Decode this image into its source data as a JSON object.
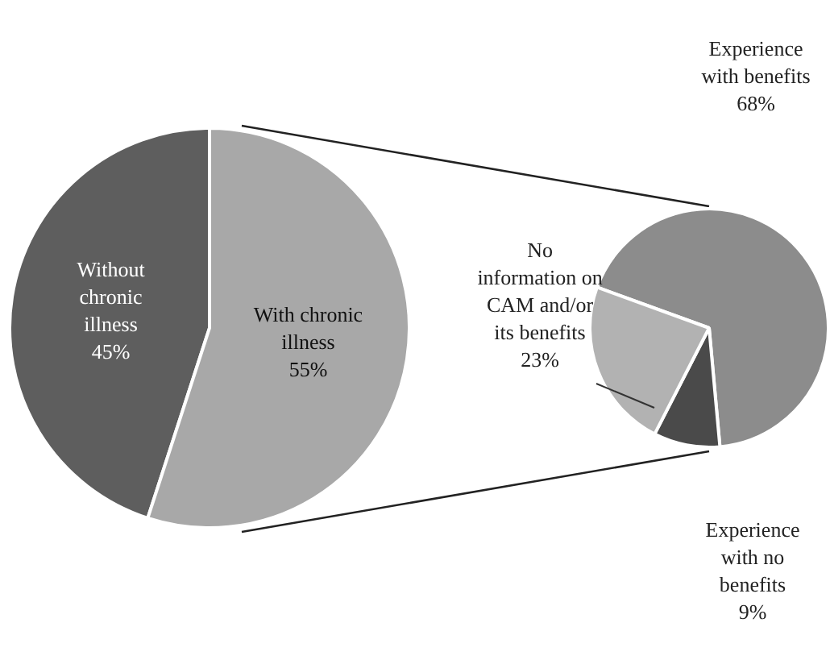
{
  "chart_data": [
    {
      "type": "pie",
      "categories": [
        "Without chronic illness",
        "With chronic illness"
      ],
      "values": [
        45,
        55
      ],
      "colors": [
        "#5e5e5e",
        "#a8a8a8"
      ],
      "value_labels": [
        "45%",
        "55%"
      ]
    },
    {
      "type": "pie",
      "categories": [
        "Experience with benefits",
        "Experience with no benefits",
        "No information on CAM and/or its benefits"
      ],
      "values": [
        68,
        9,
        23
      ],
      "colors": [
        "#8c8c8c",
        "#4a4a4a",
        "#b2b2b2"
      ],
      "value_labels": [
        "68%",
        "9%",
        "23%"
      ]
    }
  ]
}
